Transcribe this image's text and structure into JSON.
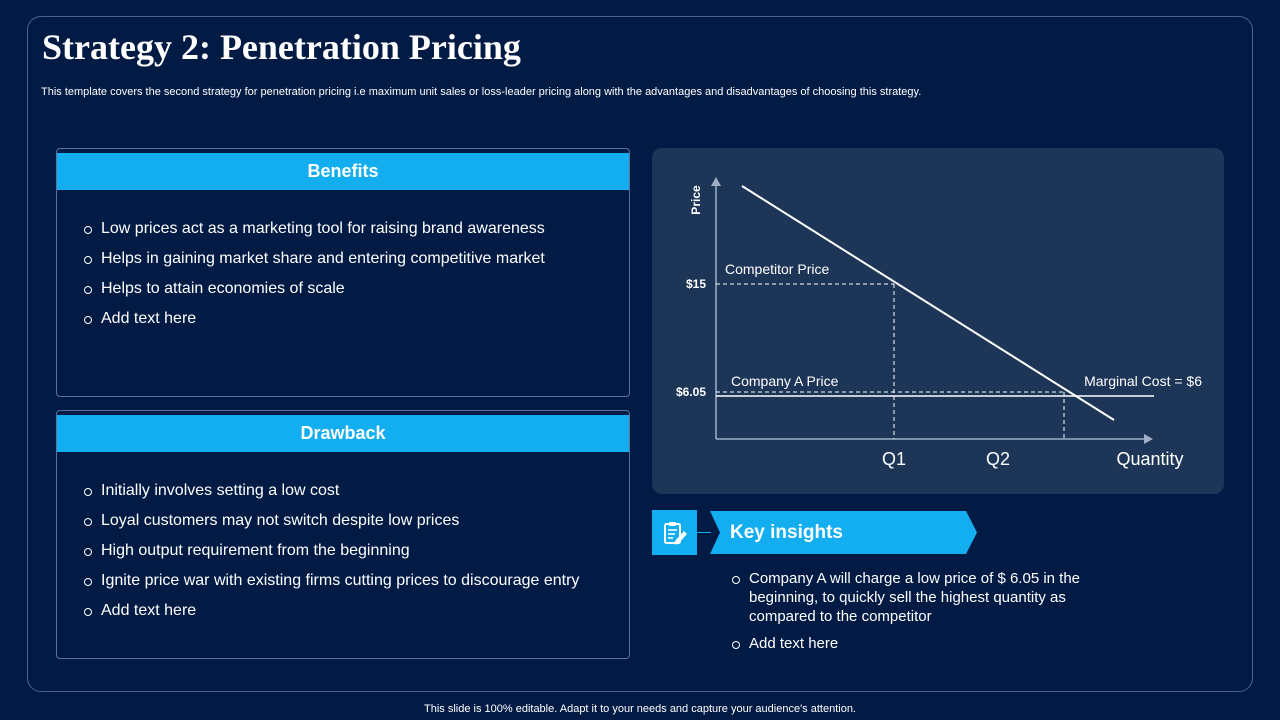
{
  "slide": {
    "title": "Strategy 2: Penetration Pricing",
    "subtitle": "This template covers the second strategy for penetration pricing i.e maximum unit sales or loss-leader pricing along with the advantages and disadvantages of choosing this strategy.",
    "footer": "This slide is 100% editable. Adapt it to your needs and capture your audience's attention."
  },
  "benefits": {
    "title": "Benefits",
    "items": [
      "Low prices act as a marketing tool for raising brand awareness",
      "Helps in gaining market share and entering  competitive market",
      "Helps to attain economies of scale",
      "Add text here"
    ]
  },
  "drawback": {
    "title": "Drawback",
    "items": [
      "Initially involves setting a low cost",
      "Loyal customers may not switch despite low prices",
      "High output requirement from the beginning",
      "Ignite price war with existing firms cutting prices to discourage entry",
      "Add text here"
    ]
  },
  "chart": {
    "y_axis_label": "Price",
    "x_axis_label": "Quantity",
    "q1_label": "Q1",
    "q2_label": "Q2",
    "price_15_label": "$15",
    "price_605_label": "$6.05",
    "competitor_price_label": "Competitor Price",
    "company_price_label": "Company A Price",
    "marginal_cost_label": "Marginal Cost = $6"
  },
  "key_insights": {
    "title": "Key insights",
    "icon": "clipboard-edit-icon",
    "items": [
      "Company A will charge a low price of $ 6.05 in the beginning, to quickly sell the highest quantity as compared to the competitor",
      "Add text here"
    ]
  },
  "colors": {
    "background": "#021b45",
    "accent": "#13aef0",
    "chart_card": "#1d3557"
  }
}
